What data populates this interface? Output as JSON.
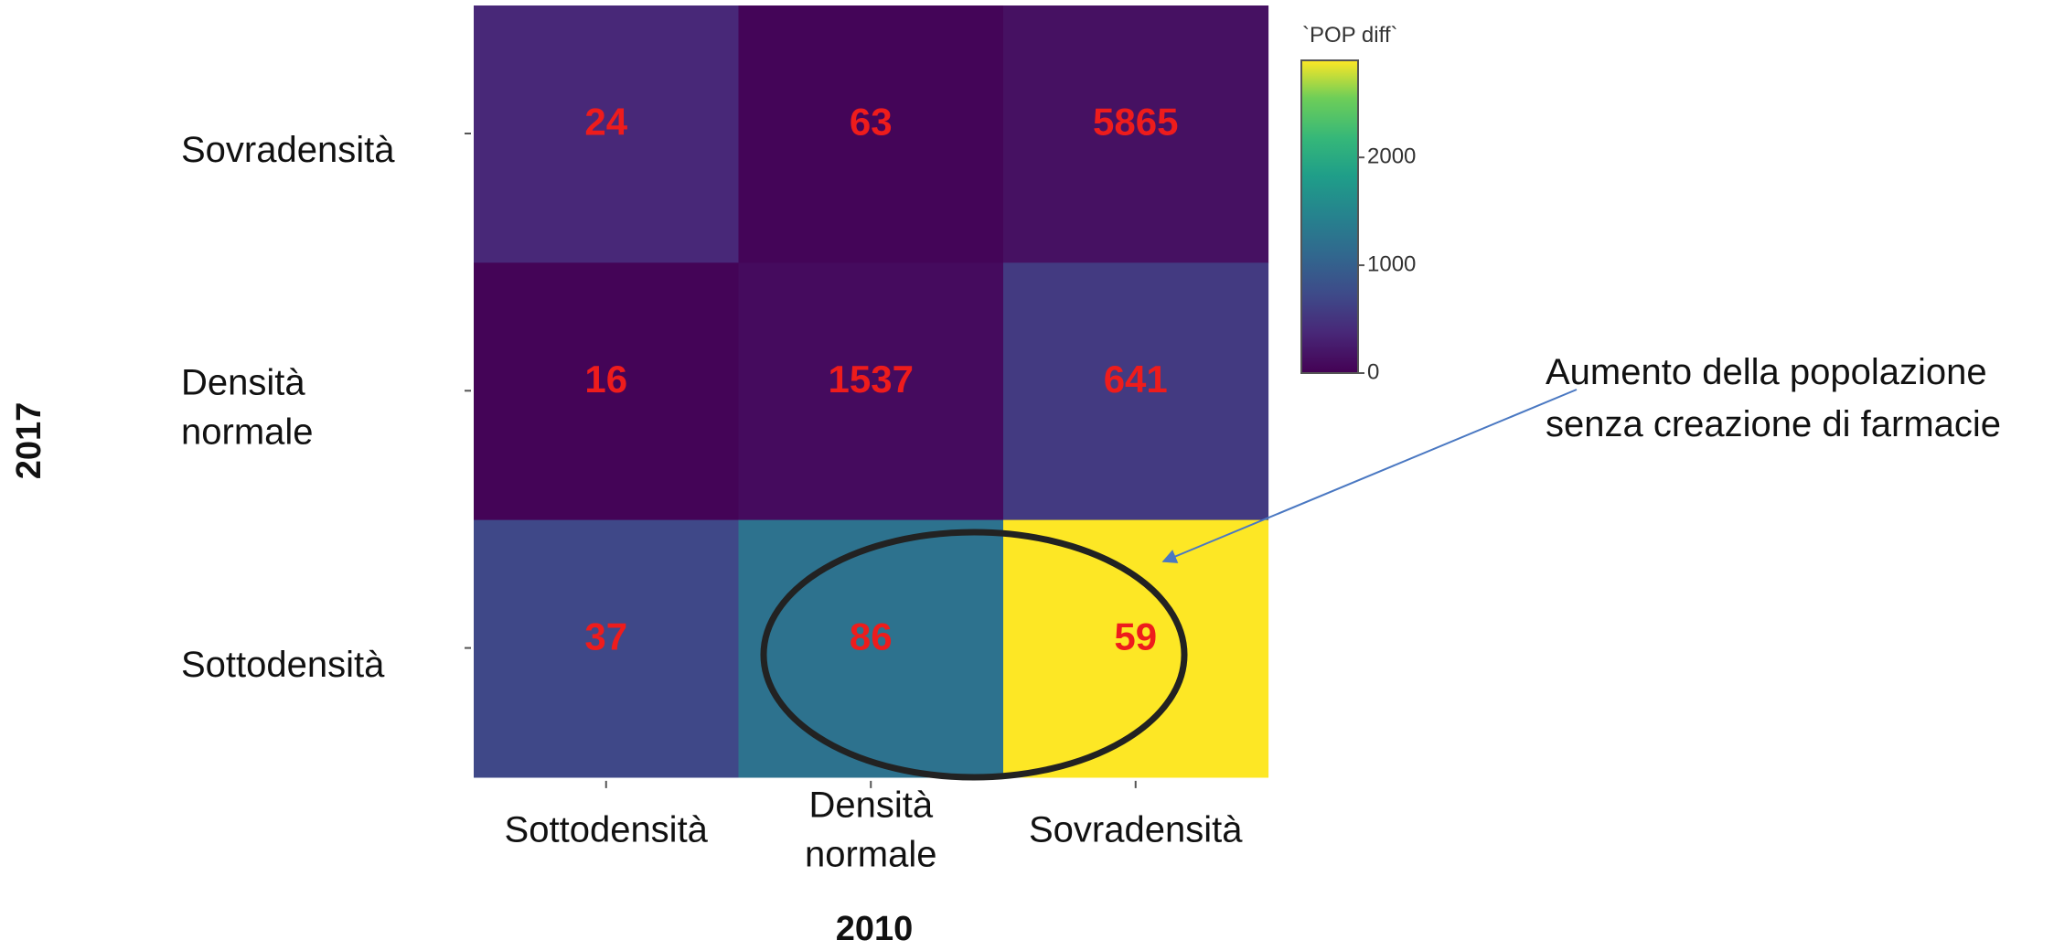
{
  "chart_data": {
    "type": "heatmap",
    "x_categories": [
      "Sottodensità",
      [
        "Densità",
        "normale"
      ],
      "Sovradensità"
    ],
    "y_categories": [
      "Sovradensità",
      [
        "Densità",
        "normale"
      ],
      "Sottodensità"
    ],
    "xlabel": "2010",
    "ylabel": "2017",
    "cells": [
      {
        "row": 0,
        "col": 0,
        "label": "24",
        "pop_diff": 380
      },
      {
        "row": 0,
        "col": 1,
        "label": "63",
        "pop_diff": 40
      },
      {
        "row": 0,
        "col": 2,
        "label": "5865",
        "pop_diff": 150
      },
      {
        "row": 1,
        "col": 0,
        "label": "16",
        "pop_diff": 30
      },
      {
        "row": 1,
        "col": 1,
        "label": "1537",
        "pop_diff": 100
      },
      {
        "row": 1,
        "col": 2,
        "label": "641",
        "pop_diff": 560
      },
      {
        "row": 2,
        "col": 0,
        "label": "37",
        "pop_diff": 700
      },
      {
        "row": 2,
        "col": 1,
        "label": "86",
        "pop_diff": 1230
      },
      {
        "row": 2,
        "col": 2,
        "label": "59",
        "pop_diff": 2900
      }
    ],
    "legend": {
      "title": "`POP diff`",
      "ticks": [
        0,
        1000,
        2000
      ],
      "range": [
        0,
        2900
      ]
    },
    "annotation": {
      "lines": [
        "Aumento della popolazione",
        "senza creazione di farmacie"
      ]
    },
    "colors": {
      "cell_label": "#ee1c1c",
      "ellipse": "#222222",
      "arrow": "#4a78c2"
    }
  }
}
